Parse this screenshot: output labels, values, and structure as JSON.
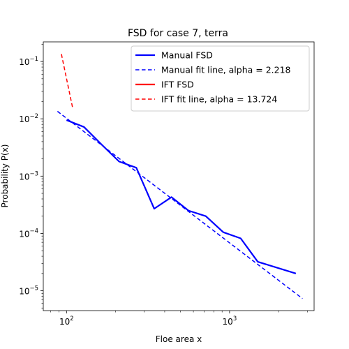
{
  "chart_data": {
    "type": "line",
    "title": "FSD for case 7, terra",
    "xlabel": "Floe area x",
    "ylabel": "Probability P(x)",
    "xscale": "log",
    "yscale": "log",
    "xlim": [
      72,
      3300
    ],
    "ylim": [
      4.5e-06,
      0.22
    ],
    "xticks": [
      {
        "value": 100,
        "base": "10",
        "exp": "2"
      },
      {
        "value": 1000,
        "base": "10",
        "exp": "3"
      }
    ],
    "yticks": [
      {
        "value": 1e-05,
        "base": "10",
        "exp": "−5"
      },
      {
        "value": 0.0001,
        "base": "10",
        "exp": "−4"
      },
      {
        "value": 0.001,
        "base": "10",
        "exp": "−3"
      },
      {
        "value": 0.01,
        "base": "10",
        "exp": "−2"
      },
      {
        "value": 0.1,
        "base": "10",
        "exp": "−1"
      }
    ],
    "grid": false,
    "legend_position": "upper-right",
    "series": [
      {
        "name": "Manual FSD",
        "color": "#0000ff",
        "style": "solid",
        "x": [
          100,
          128,
          165,
          210,
          268,
          345,
          440,
          560,
          715,
          915,
          1170,
          1490,
          2550
        ],
        "y": [
          0.0095,
          0.0072,
          0.0035,
          0.0018,
          0.0014,
          0.00027,
          0.00043,
          0.00025,
          0.0002,
          0.000105,
          8.2e-05,
          3.2e-05,
          2e-05
        ]
      },
      {
        "name": "Manual fit line, alpha = 2.218",
        "color": "#0000ff",
        "style": "dashed",
        "x": [
          88,
          2800
        ],
        "y": [
          0.0135,
          7.3e-06
        ]
      },
      {
        "name": "IFT FSD",
        "color": "#ff0000",
        "style": "solid",
        "x": [],
        "y": []
      },
      {
        "name": "IFT fit line, alpha = 13.724",
        "color": "#ff0000",
        "style": "dashed",
        "x": [
          93,
          109
        ],
        "y": [
          0.135,
          0.0155
        ]
      }
    ]
  }
}
